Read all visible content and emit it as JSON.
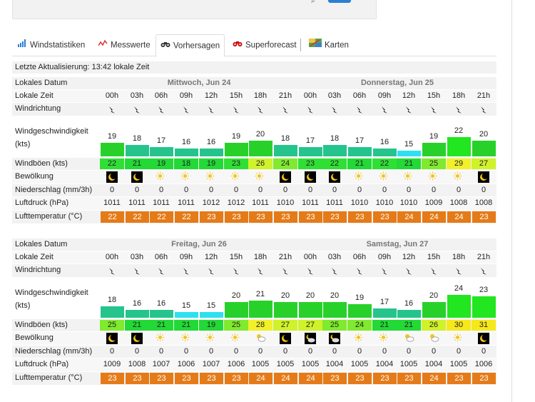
{
  "tabs": [
    {
      "label": "Windstatistiken",
      "icon": "bar-chart-icon"
    },
    {
      "label": "Messwerte",
      "icon": "line-chart-icon"
    },
    {
      "label": "Vorhersagen",
      "icon": "binoculars-icon",
      "active": true
    },
    {
      "label": "Superforecast",
      "icon": "binoculars-red-icon"
    },
    {
      "label": "Karten",
      "icon": "map-icon"
    }
  ],
  "last_update": "Letzte Aktualisierung: 13:42 lokale Zeit",
  "row_labels": {
    "date": "Lokales Datum",
    "time": "Lokale Zeit",
    "direction": "Windrichtung",
    "speed_line1": "Windgeschwindigkeit",
    "speed_line2": "(kts)",
    "gusts": "Windböen (kts)",
    "clouds": "Bewölkung",
    "rain": "Niederschlag (mm/3h)",
    "pressure": "Luftdruck (hPa)",
    "temp": "Lufttemperatur (°C)"
  },
  "colors": {
    "temp": "#e57b18",
    "active_tab_border": "#dddddd",
    "header_bg": "#f2f2f2"
  },
  "blocks": [
    {
      "days": [
        "Mittwoch, Jun 24",
        "Donnerstag, Jun 25"
      ],
      "hours": [
        "00h",
        "03h",
        "06h",
        "09h",
        "12h",
        "15h",
        "18h",
        "21h",
        "00h",
        "03h",
        "06h",
        "09h",
        "12h",
        "15h",
        "18h",
        "21h"
      ],
      "speed": [
        19,
        18,
        17,
        16,
        16,
        19,
        20,
        18,
        17,
        18,
        17,
        16,
        15,
        19,
        22,
        20
      ],
      "gusts": [
        22,
        21,
        19,
        18,
        19,
        23,
        26,
        24,
        23,
        22,
        21,
        22,
        21,
        25,
        29,
        27
      ],
      "clouds": [
        "moon",
        "moon",
        "sun",
        "sun",
        "sun",
        "sun",
        "sun",
        "moon",
        "moon",
        "moon",
        "sun",
        "sun",
        "sun",
        "sun",
        "sun",
        "moon"
      ],
      "rain": [
        0,
        0,
        0,
        0,
        0,
        0,
        0,
        0,
        0,
        0,
        0,
        0,
        0,
        0,
        0,
        0
      ],
      "pressure": [
        1011,
        1011,
        1011,
        1011,
        1012,
        1012,
        1011,
        1010,
        1011,
        1011,
        1010,
        1010,
        1010,
        1009,
        1008,
        1008
      ],
      "temp": [
        22,
        22,
        22,
        22,
        23,
        23,
        23,
        23,
        23,
        23,
        23,
        23,
        24,
        24,
        24,
        23
      ]
    },
    {
      "days": [
        "Freitag, Jun 26",
        "Samstag, Jun 27"
      ],
      "hours": [
        "00h",
        "03h",
        "06h",
        "09h",
        "12h",
        "15h",
        "18h",
        "21h",
        "00h",
        "03h",
        "06h",
        "09h",
        "12h",
        "15h",
        "18h",
        "21h"
      ],
      "speed": [
        18,
        16,
        16,
        15,
        15,
        20,
        21,
        20,
        20,
        20,
        19,
        17,
        16,
        20,
        24,
        23
      ],
      "gusts": [
        25,
        21,
        21,
        21,
        19,
        25,
        28,
        27,
        27,
        25,
        24,
        21,
        21,
        26,
        30,
        31
      ],
      "clouds": [
        "moon",
        "moon",
        "sun",
        "sun",
        "sun",
        "sun",
        "partly",
        "moon",
        "partly-moon",
        "partly-moon",
        "sun",
        "sun",
        "partly",
        "partly",
        "sun",
        "moon"
      ],
      "rain": [
        0,
        0,
        0,
        0,
        0,
        0,
        0,
        0,
        0,
        0,
        0,
        0,
        0,
        0,
        0,
        0
      ],
      "pressure": [
        1009,
        1008,
        1007,
        1006,
        1007,
        1006,
        1005,
        1005,
        1005,
        1004,
        1005,
        1004,
        1005,
        1004,
        1005,
        1006
      ],
      "temp": [
        23,
        23,
        23,
        23,
        23,
        23,
        24,
        24,
        24,
        23,
        23,
        23,
        23,
        24,
        23,
        23
      ]
    }
  ]
}
